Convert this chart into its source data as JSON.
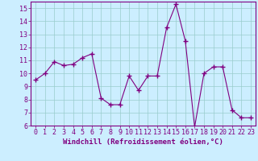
{
  "x": [
    0,
    1,
    2,
    3,
    4,
    5,
    6,
    7,
    8,
    9,
    10,
    11,
    12,
    13,
    14,
    15,
    16,
    17,
    18,
    19,
    20,
    21,
    22,
    23
  ],
  "y": [
    9.5,
    10.0,
    10.9,
    10.6,
    10.7,
    11.2,
    11.5,
    8.1,
    7.6,
    7.6,
    9.8,
    8.7,
    9.8,
    9.8,
    13.5,
    15.3,
    12.5,
    5.9,
    10.0,
    10.5,
    10.5,
    7.2,
    6.6,
    6.6
  ],
  "line_color": "#800080",
  "marker": "+",
  "marker_size": 4,
  "bg_color": "#cceeff",
  "grid_color": "#99cccc",
  "xlabel": "Windchill (Refroidissement éolien,°C)",
  "ylim": [
    6,
    15.5
  ],
  "xlim": [
    -0.5,
    23.5
  ],
  "yticks": [
    6,
    7,
    8,
    9,
    10,
    11,
    12,
    13,
    14,
    15
  ],
  "xticks": [
    0,
    1,
    2,
    3,
    4,
    5,
    6,
    7,
    8,
    9,
    10,
    11,
    12,
    13,
    14,
    15,
    16,
    17,
    18,
    19,
    20,
    21,
    22,
    23
  ],
  "xlabel_fontsize": 6.5,
  "tick_fontsize": 6.0,
  "label_color": "#800080",
  "spine_color": "#800080",
  "linewidth": 0.8
}
